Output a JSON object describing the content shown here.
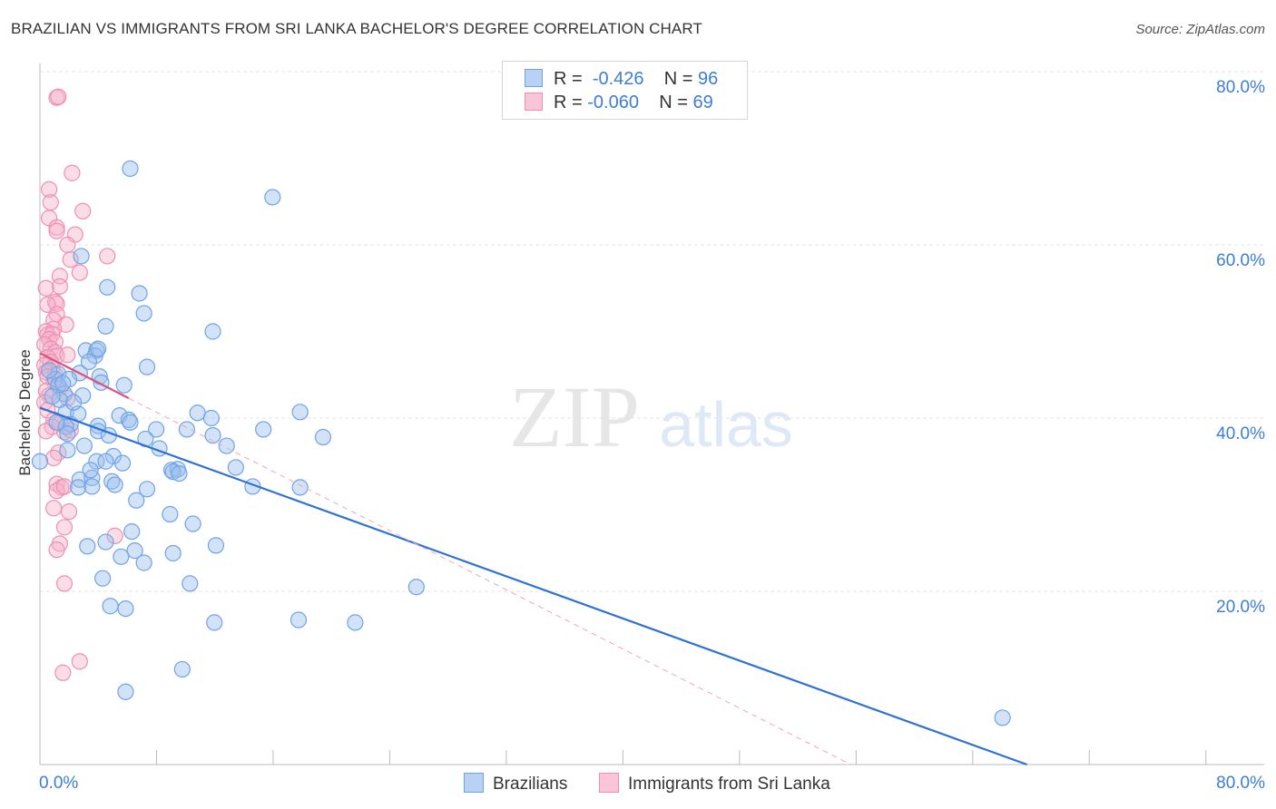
{
  "title": "BRAZILIAN VS IMMIGRANTS FROM SRI LANKA BACHELOR'S DEGREE CORRELATION CHART",
  "source": "Source: ZipAtlas.com",
  "watermark": {
    "zip": "ZIP",
    "atlas": "atlas"
  },
  "legend": {
    "r_label": "R =",
    "n_label": "N =",
    "series": [
      {
        "name": "Brazilians",
        "r": "-0.426",
        "n": "96",
        "color": "#6fa3e6",
        "fill": "#b9d2f3"
      },
      {
        "name": "Immigrants from Sri Lanka",
        "r": "-0.060",
        "n": "69",
        "color": "#ef8fb0",
        "fill": "#f8c6d6"
      }
    ]
  },
  "chart_data": {
    "type": "scatter",
    "title": "BRAZILIAN VS IMMIGRANTS FROM SRI LANKA BACHELOR'S DEGREE CORRELATION CHART",
    "xlabel": "",
    "ylabel": "Bachelor's Degree",
    "xlim": [
      0,
      80
    ],
    "ylim": [
      0,
      80
    ],
    "x_tick_labels": [
      "0.0%",
      "80.0%"
    ],
    "y_tick_labels": [
      {
        "value": 20,
        "label": "20.0%"
      },
      {
        "value": 40,
        "label": "40.0%"
      },
      {
        "value": 60,
        "label": "60.0%"
      },
      {
        "value": 80,
        "label": "80.0%"
      }
    ],
    "grid": true,
    "series": [
      {
        "name": "Brazilians",
        "color": "#4f8ad8",
        "trend": {
          "x": [
            0,
            64.5
          ],
          "y": [
            41.2,
            0
          ]
        },
        "points": [
          [
            5.9,
            68.8
          ],
          [
            15.2,
            65.5
          ],
          [
            2.7,
            58.7
          ],
          [
            4.4,
            55.1
          ],
          [
            6.5,
            54.4
          ],
          [
            6.8,
            52.1
          ],
          [
            11.3,
            50.0
          ],
          [
            4.3,
            50.6
          ],
          [
            3.0,
            47.8
          ],
          [
            3.7,
            47.8
          ],
          [
            3.6,
            47.2
          ],
          [
            3.8,
            48.0
          ],
          [
            7.0,
            45.9
          ],
          [
            1.2,
            45.1
          ],
          [
            2.6,
            45.2
          ],
          [
            3.9,
            44.8
          ],
          [
            1.0,
            44.5
          ],
          [
            1.9,
            44.5
          ],
          [
            4.0,
            44.1
          ],
          [
            1.2,
            43.8
          ],
          [
            5.5,
            43.8
          ],
          [
            1.6,
            42.8
          ],
          [
            2.8,
            42.6
          ],
          [
            1.3,
            42.1
          ],
          [
            1.7,
            40.7
          ],
          [
            2.5,
            40.5
          ],
          [
            5.2,
            40.3
          ],
          [
            10.3,
            40.6
          ],
          [
            17.0,
            40.7
          ],
          [
            5.8,
            39.8
          ],
          [
            5.9,
            39.5
          ],
          [
            11.2,
            40.0
          ],
          [
            2.0,
            39.3
          ],
          [
            3.8,
            39.1
          ],
          [
            1.7,
            39.0
          ],
          [
            3.8,
            38.5
          ],
          [
            7.6,
            38.7
          ],
          [
            9.6,
            38.7
          ],
          [
            14.6,
            38.7
          ],
          [
            1.8,
            38.2
          ],
          [
            11.3,
            38.0
          ],
          [
            6.9,
            37.6
          ],
          [
            18.5,
            37.8
          ],
          [
            1.8,
            36.3
          ],
          [
            4.8,
            35.6
          ],
          [
            3.7,
            35.0
          ],
          [
            4.3,
            35.0
          ],
          [
            5.4,
            34.8
          ],
          [
            12.8,
            34.3
          ],
          [
            8.6,
            34.0
          ],
          [
            9.0,
            34.1
          ],
          [
            8.7,
            33.8
          ],
          [
            9.1,
            33.6
          ],
          [
            2.6,
            32.9
          ],
          [
            3.4,
            33.1
          ],
          [
            4.7,
            32.7
          ],
          [
            4.9,
            32.3
          ],
          [
            2.5,
            32.0
          ],
          [
            3.4,
            32.1
          ],
          [
            13.9,
            32.1
          ],
          [
            17.0,
            32.0
          ],
          [
            7.0,
            31.8
          ],
          [
            8.5,
            28.9
          ],
          [
            10.0,
            27.8
          ],
          [
            6.0,
            26.9
          ],
          [
            4.3,
            25.7
          ],
          [
            3.1,
            25.2
          ],
          [
            11.5,
            25.3
          ],
          [
            6.2,
            24.7
          ],
          [
            8.7,
            24.4
          ],
          [
            5.3,
            24.0
          ],
          [
            6.8,
            23.3
          ],
          [
            4.1,
            21.5
          ],
          [
            9.8,
            20.9
          ],
          [
            24.6,
            20.5
          ],
          [
            4.6,
            18.3
          ],
          [
            5.6,
            18.0
          ],
          [
            11.4,
            16.4
          ],
          [
            16.9,
            16.7
          ],
          [
            20.6,
            16.4
          ],
          [
            9.3,
            11.0
          ],
          [
            5.6,
            8.4
          ],
          [
            62.9,
            5.4
          ],
          [
            0.0,
            35.0
          ],
          [
            1.5,
            44.0
          ],
          [
            2.2,
            41.8
          ],
          [
            3.2,
            46.5
          ],
          [
            0.6,
            45.5
          ],
          [
            2.9,
            36.8
          ],
          [
            4.5,
            38.0
          ],
          [
            1.1,
            39.5
          ],
          [
            3.3,
            34.0
          ],
          [
            7.8,
            36.5
          ],
          [
            6.3,
            30.5
          ],
          [
            12.2,
            36.8
          ],
          [
            0.8,
            42.5
          ]
        ]
      },
      {
        "name": "Immigrants from Sri Lanka",
        "color": "#e86f98",
        "trend": {
          "x": [
            0,
            5.8
          ],
          "y": [
            47.5,
            42.3
          ]
        },
        "points": [
          [
            1.1,
            77.0
          ],
          [
            1.2,
            77.1
          ],
          [
            2.1,
            68.3
          ],
          [
            0.6,
            66.4
          ],
          [
            0.7,
            64.9
          ],
          [
            2.8,
            63.9
          ],
          [
            0.6,
            63.1
          ],
          [
            1.1,
            62.0
          ],
          [
            1.1,
            61.6
          ],
          [
            2.3,
            61.2
          ],
          [
            1.8,
            60.0
          ],
          [
            2.0,
            58.3
          ],
          [
            4.4,
            58.7
          ],
          [
            2.6,
            56.8
          ],
          [
            1.3,
            56.4
          ],
          [
            1.3,
            55.2
          ],
          [
            0.4,
            55.0
          ],
          [
            1.0,
            53.4
          ],
          [
            1.1,
            53.2
          ],
          [
            0.5,
            53.1
          ],
          [
            1.1,
            52.0
          ],
          [
            0.9,
            51.3
          ],
          [
            1.7,
            50.8
          ],
          [
            0.9,
            50.3
          ],
          [
            0.4,
            50.0
          ],
          [
            0.5,
            49.6
          ],
          [
            0.8,
            49.7
          ],
          [
            0.6,
            49.1
          ],
          [
            1.0,
            48.8
          ],
          [
            0.3,
            48.5
          ],
          [
            0.7,
            48.0
          ],
          [
            1.0,
            47.6
          ],
          [
            1.1,
            47.2
          ],
          [
            1.8,
            47.3
          ],
          [
            0.5,
            47.0
          ],
          [
            0.7,
            46.5
          ],
          [
            0.3,
            46.1
          ],
          [
            0.8,
            45.8
          ],
          [
            0.4,
            45.3
          ],
          [
            1.0,
            45.0
          ],
          [
            0.5,
            44.8
          ],
          [
            0.9,
            44.3
          ],
          [
            1.3,
            43.5
          ],
          [
            0.4,
            43.1
          ],
          [
            0.6,
            42.6
          ],
          [
            1.8,
            42.3
          ],
          [
            0.3,
            41.8
          ],
          [
            0.5,
            40.9
          ],
          [
            0.9,
            39.8
          ],
          [
            1.3,
            39.4
          ],
          [
            0.8,
            39.0
          ],
          [
            0.4,
            38.5
          ],
          [
            1.6,
            38.4
          ],
          [
            2.0,
            38.6
          ],
          [
            1.2,
            36.0
          ],
          [
            0.9,
            35.4
          ],
          [
            1.1,
            32.4
          ],
          [
            1.4,
            32.0
          ],
          [
            1.1,
            31.6
          ],
          [
            1.6,
            32.1
          ],
          [
            0.9,
            29.6
          ],
          [
            1.9,
            29.2
          ],
          [
            1.6,
            27.4
          ],
          [
            4.9,
            26.4
          ],
          [
            1.3,
            25.5
          ],
          [
            1.1,
            24.8
          ],
          [
            1.6,
            20.9
          ],
          [
            2.6,
            11.9
          ],
          [
            1.5,
            10.6
          ]
        ]
      }
    ]
  }
}
